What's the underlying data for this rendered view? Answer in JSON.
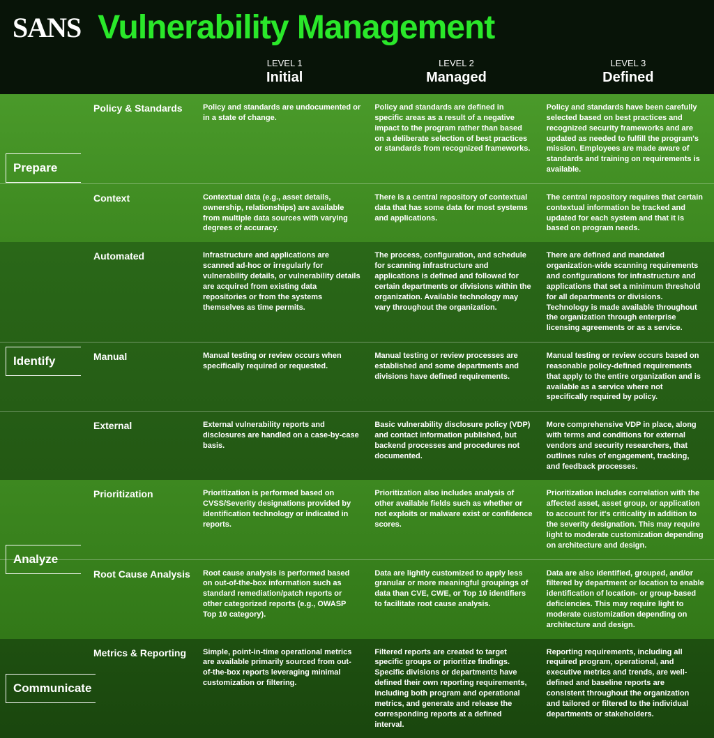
{
  "brand": "SANS",
  "title": "Vulnerability Management",
  "levels": [
    {
      "num": "LEVEL 1",
      "name": "Initial"
    },
    {
      "num": "LEVEL 2",
      "name": "Managed"
    },
    {
      "num": "LEVEL 3",
      "name": "Defined"
    }
  ],
  "sections": [
    {
      "name": "Prepare",
      "bg": "section-bg-light",
      "rows": [
        {
          "sub": "Policy & Standards",
          "cells": [
            "Policy and standards are undocumented or in a state of change.",
            "Policy and standards are defined in specific areas as a result of a negative impact to the program rather than based on a deliberate selection of best practices or standards from recognized frameworks.",
            "Policy and standards have been carefully selected based on best practices and recognized security frameworks and are updated as needed to fulfill the program's mission. Employees are made aware of standards and training on requirements is available."
          ]
        },
        {
          "sub": "Context",
          "cells": [
            "Contextual data (e.g., asset details, ownership, relationships) are available from multiple data sources with varying degrees of accuracy.",
            "There is a central repository of contextual data that has some data for most systems and applications.",
            "The central repository requires that certain contextual information be tracked and updated for each system and that it is based on program needs."
          ]
        }
      ]
    },
    {
      "name": "Identify",
      "bg": "section-bg-dark",
      "rows": [
        {
          "sub": "Automated",
          "cells": [
            "Infrastructure and applications are scanned ad-hoc or irregularly for vulnerability details, or vulnerability details are acquired from existing data repositories or from the systems themselves as time permits.",
            "The process, configuration, and schedule for scanning infrastructure and applications is defined and followed for certain departments or divisions within the organization. Available technology may vary throughout the organization.",
            "There are defined and mandated organization-wide scanning requirements and configurations for infrastructure and applications that set a minimum threshold for all departments or divisions. Technology is made available throughout the organization through enterprise licensing agreements or as a service."
          ]
        },
        {
          "sub": "Manual",
          "cells": [
            "Manual testing or review occurs when specifically required or requested.",
            "Manual testing or review processes are established and some departments and divisions have defined requirements.",
            "Manual testing or review occurs based on reasonable policy-defined requirements that apply to the entire organization and is available as a service where not specifically required by policy."
          ]
        },
        {
          "sub": "External",
          "cells": [
            "External vulnerability reports and disclosures are handled on a case-by-case basis.",
            "Basic vulnerability disclosure policy (VDP) and contact information published, but backend processes and procedures not documented.",
            "More comprehensive VDP in place, along with terms and conditions for external vendors and security researchers, that outlines rules of engagement, tracking, and feedback processes."
          ]
        }
      ]
    },
    {
      "name": "Analyze",
      "bg": "section-bg-mid",
      "rows": [
        {
          "sub": "Prioritization",
          "cells": [
            "Prioritization is performed based on CVSS/Severity designations provided by identification technology or indicated in reports.",
            "Prioritization also includes analysis of other available fields such as whether or not exploits or malware exist or confidence scores.",
            "Prioritization includes correlation with the affected asset, asset group, or application to account for it's criticality in addition to the severity designation. This may require light to moderate customization depending on architecture and design."
          ]
        },
        {
          "sub": "Root Cause Analysis",
          "cells": [
            "Root cause analysis is performed based on out-of-the-box information such as standard remediation/patch reports or other categorized reports (e.g., OWASP Top 10 category).",
            "Data are lightly customized to apply less granular or more meaningful groupings of data than CVE, CWE, or Top 10 identifiers to facilitate root cause analysis.",
            "Data are also identified, grouped, and/or filtered by department or location to enable identification of location- or group-based deficiencies. This may require light to moderate customization depending on architecture and design."
          ]
        }
      ]
    },
    {
      "name": "Communicate",
      "bg": "section-bg-darker",
      "rows": [
        {
          "sub": "Metrics & Reporting",
          "cells": [
            "Simple, point-in-time operational metrics are available primarily sourced from out-of-the-box reports leveraging minimal customization or filtering.",
            "Filtered reports are created to target specific groups or prioritize findings. Specific divisions or departments have defined their own reporting requirements, including both program and operational metrics, and generate and release the corresponding reports at a defined interval.",
            "Reporting requirements, including all required program, operational, and executive metrics and trends, are well-defined and baseline reports are consistent throughout the organization and tailored or filtered to the individual departments or stakeholders."
          ]
        }
      ]
    }
  ]
}
